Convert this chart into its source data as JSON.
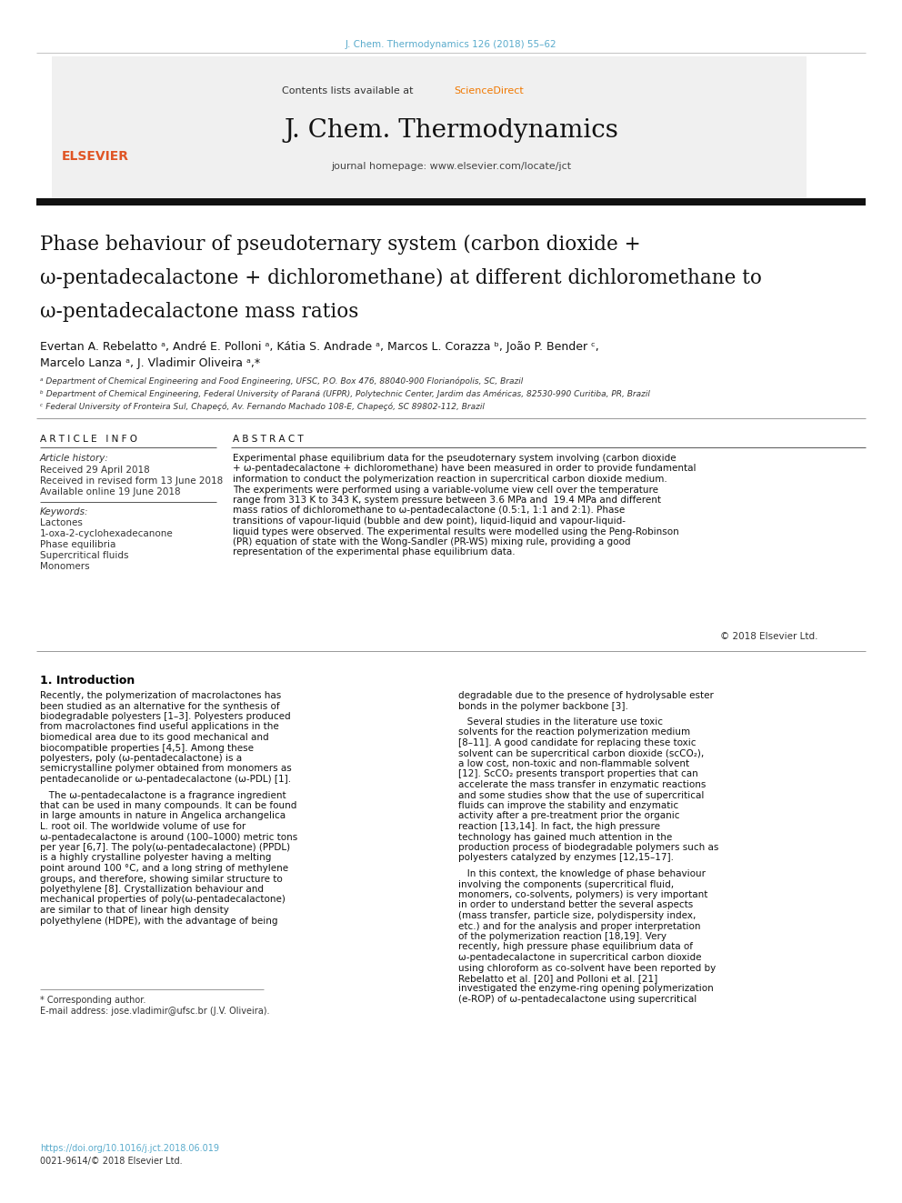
{
  "bg_color": "#ffffff",
  "page_width": 9.92,
  "page_height": 13.23,
  "dpi": 100,
  "journal_ref": "J. Chem. Thermodynamics 126 (2018) 55–62",
  "journal_ref_color": "#5aabcc",
  "contents_label": "Contents lists available at ",
  "sciencedirect_label": "ScienceDirect",
  "sciencedirect_color": "#f07800",
  "journal_name": "J. Chem. Thermodynamics",
  "journal_homepage": "journal homepage: www.elsevier.com/locate/jct",
  "elsevier_color": "#e05525",
  "title_line1": "Phase behaviour of pseudoternary system (carbon dioxide +",
  "title_line2": "ω-pentadecalactone + dichloromethane) at different dichloromethane to",
  "title_line3": "ω-pentadecalactone mass ratios",
  "author_line1": "Evertan A. Rebelatto ᵃ, André E. Polloni ᵃ, Kátia S. Andrade ᵃ, Marcos L. Corazza ᵇ, João P. Bender ᶜ,",
  "author_line2": "Marcelo Lanza ᵃ, J. Vladimir Oliveira ᵃ,*",
  "affil_a": "ᵃ Department of Chemical Engineering and Food Engineering, UFSC, P.O. Box 476, 88040-900 Florianópolis, SC, Brazil",
  "affil_b": "ᵇ Department of Chemical Engineering, Federal University of Paraná (UFPR), Polytechnic Center, Jardim das Américas, 82530-990 Curitiba, PR, Brazil",
  "affil_c": "ᶜ Federal University of Fronteira Sul, Chapeçó, Av. Fernando Machado 108-E, Chapeçó, SC 89802-112, Brazil",
  "article_info_hdr": "A R T I C L E   I N F O",
  "abstract_hdr": "A B S T R A C T",
  "art_history_lbl": "Article history:",
  "received1": "Received 29 April 2018",
  "received2": "Received in revised form 13 June 2018",
  "available": "Available online 19 June 2018",
  "keywords_lbl": "Keywords:",
  "kw1": "Lactones",
  "kw2": "1-oxa-2-cyclohexadecanone",
  "kw3": "Phase equilibria",
  "kw4": "Supercritical fluids",
  "kw5": "Monomers",
  "abstract_body": "Experimental phase equilibrium data for the pseudoternary system involving (carbon dioxide + ω-pentadecalactone + dichloromethane) have been measured in order to provide fundamental information to conduct the polymerization reaction in supercritical carbon dioxide medium. The experiments were performed using a variable-volume view cell over the temperature range from 313 K to 343 K, system pressure between 3.6 MPa and  19.4 MPa and different mass ratios of dichloromethane to ω-pentadecalactone (0.5:1, 1:1 and 2:1). Phase transitions of vapour-liquid (bubble and dew point), liquid-liquid and vapour-liquid-liquid types were observed. The experimental results were modelled using the Peng-Robinson (PR) equation of state with the Wong-Sandler (PR-WS) mixing rule, providing a good representation of the experimental phase equilibrium data.",
  "copyright_text": "© 2018 Elsevier Ltd.",
  "intro_hdr": "1. Introduction",
  "intro_col1_p1": "Recently, the polymerization of macrolactones has been studied as an alternative for the synthesis of biodegradable polyesters [1–3]. Polyesters produced from macrolactones find useful applications in the biomedical area due to its good mechanical and biocompatible properties [4,5]. Among these polyesters, poly (ω-pentadecalactone) is a semicrystalline polymer obtained from monomers as pentadecanolide or ω-pentadecalactone (ω-PDL) [1].",
  "intro_col1_p2": "The ω-pentadecalactone is a fragrance ingredient that can be used in many compounds. It can be found in large amounts in nature in Angelica archangelica L. root oil. The worldwide volume of use for ω-pentadecalactone is around (100–1000) metric tons per year [6,7]. The poly(ω-pentadecalactone) (PPDL) is a highly crystalline polyester having a melting point around 100 °C, and a long string of methylene groups, and therefore, showing similar structure to polyethylene [8]. Crystallization behaviour and mechanical properties of poly(ω-pentadecalactone) are similar to that of linear high density polyethylene (HDPE), with the advantage of being",
  "intro_col2_p1": "degradable due to the presence of hydrolysable ester bonds in the polymer backbone [3].",
  "intro_col2_p2": "Several studies in the literature use toxic solvents for the reaction polymerization medium [8–11]. A good candidate for replacing these toxic solvent can be supercritical carbon dioxide (scCO₂), a low cost, non-toxic and non-flammable solvent [12]. ScCO₂ presents transport properties that can accelerate the mass transfer in enzymatic reactions and some studies show that the use of supercritical fluids can improve the stability and enzymatic activity after a pre-treatment prior the organic reaction [13,14]. In fact, the high pressure technology has gained much attention in the production process of biodegradable polymers such as polyesters catalyzed by enzymes [12,15–17].",
  "intro_col2_p3": "In this context, the knowledge of phase behaviour involving the components (supercritical fluid, monomers, co-solvents, polymers) is very important in order to understand better the several aspects (mass transfer, particle size, polydispersity index, etc.) and for the analysis and proper interpretation of the polymerization reaction [18,19]. Very recently, high pressure phase equilibrium data of ω-pentadecalactone in supercritical carbon dioxide using chloroform as co-solvent have been reported by Rebelatto et al. [20] and Polloni et al. [21] investigated the enzyme-ring opening polymerization (e-ROP) of ω-pentadecalactone using supercritical",
  "corresp": "* Corresponding author.",
  "email": "E-mail address: jose.vladimir@ufsc.br (J.V. Oliveira).",
  "doi_text": "https://doi.org/10.1016/j.jct.2018.06.019",
  "issn_text": "0021-9614/© 2018 Elsevier Ltd.",
  "link_color": "#5aabcc",
  "header_rect_color": "#f0f0f0",
  "separator_color": "#666666",
  "thick_bar_color": "#111111"
}
